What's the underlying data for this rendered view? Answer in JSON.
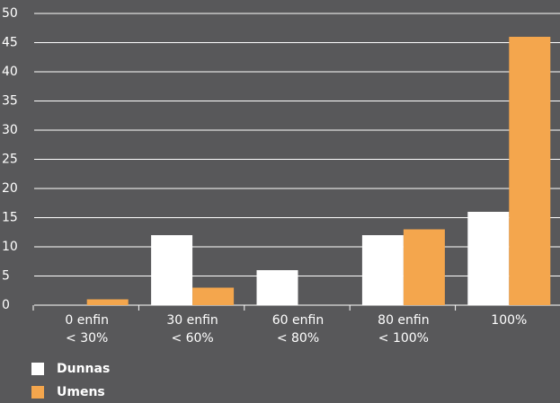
{
  "chart_data": {
    "type": "bar",
    "categories": [
      "0 enfin\n< 30%",
      "30 enfin\n< 60%",
      "60 enfin\n< 80%",
      "80 enfin\n< 100%",
      "100%"
    ],
    "series": [
      {
        "name": "Dunnas",
        "color": "#ffffff",
        "values": [
          0,
          12,
          6,
          12,
          16
        ]
      },
      {
        "name": "Umens",
        "color": "#f4a64d",
        "values": [
          1,
          3,
          0,
          13,
          46
        ]
      }
    ],
    "ylim": [
      0,
      50
    ],
    "yticks": [
      0,
      5,
      10,
      15,
      20,
      25,
      30,
      35,
      40,
      45,
      50
    ],
    "grid": true,
    "legend": "bottom-left"
  }
}
